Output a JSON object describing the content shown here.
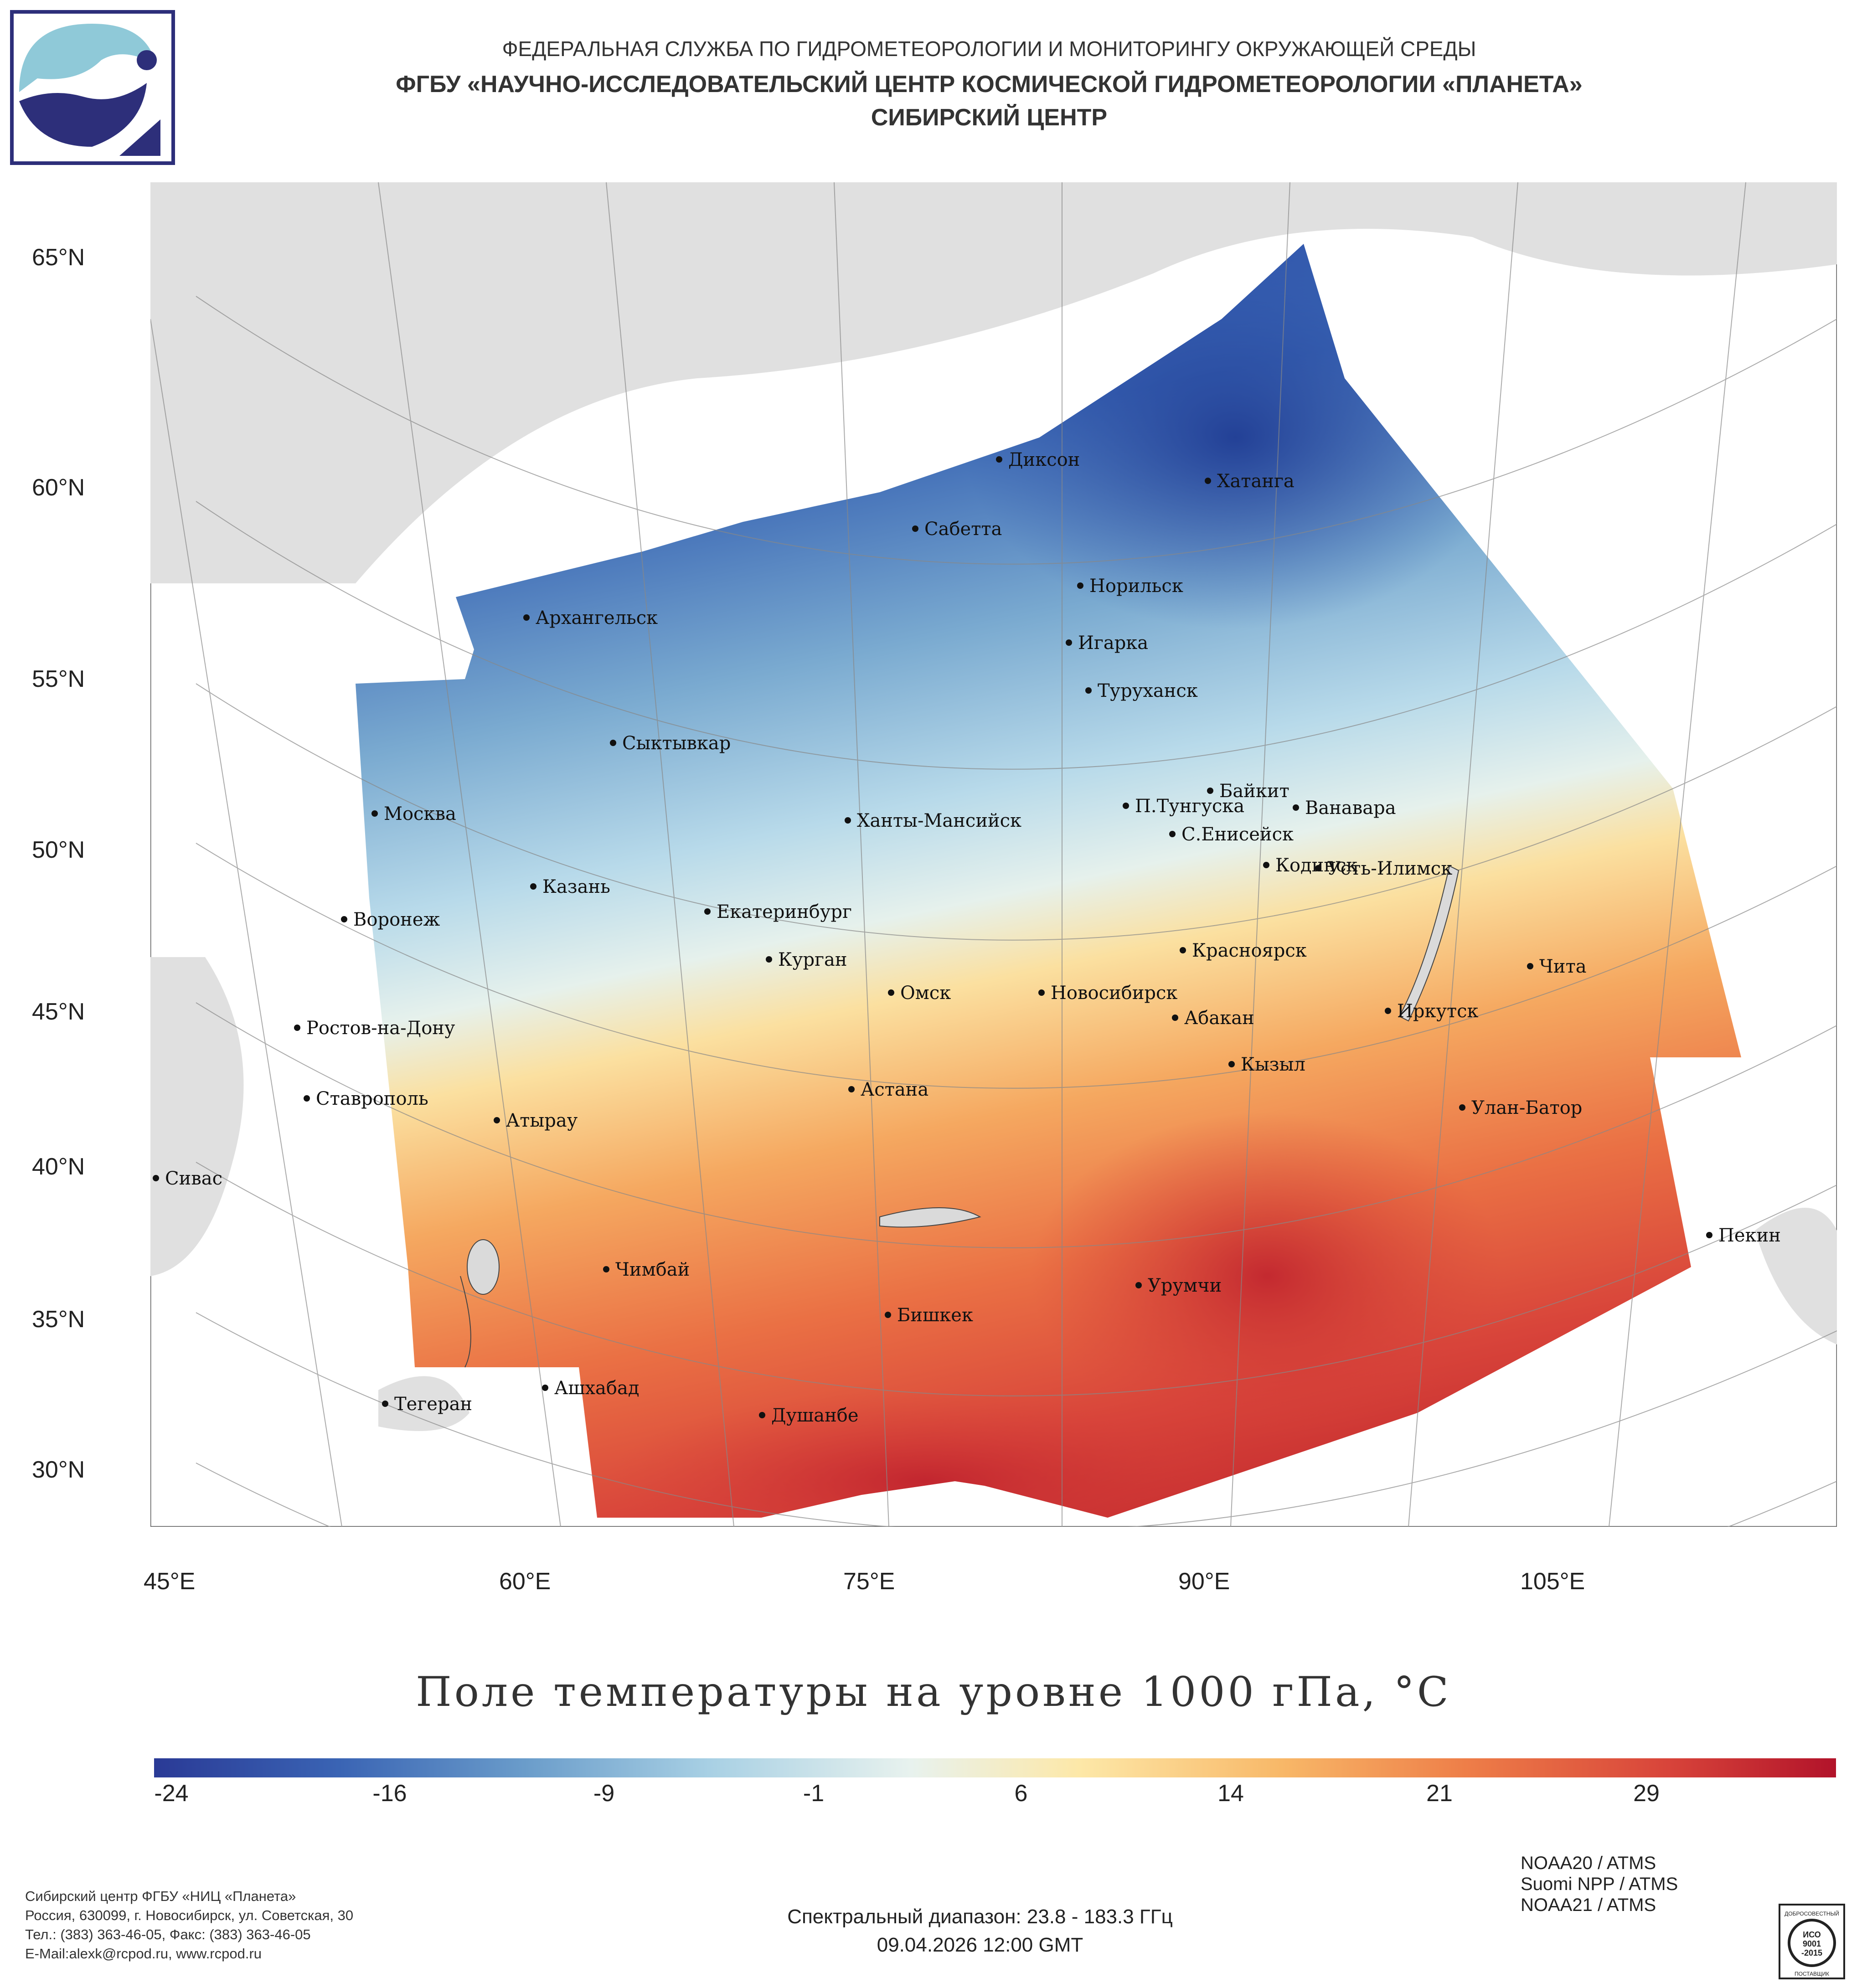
{
  "header": {
    "line1": "ФЕДЕРАЛЬНАЯ СЛУЖБА ПО ГИДРОМЕТЕОРОЛОГИИ И МОНИТОРИНГУ ОКРУЖАЮЩЕЙ СРЕДЫ",
    "line2": "ФГБУ «НАУЧНО-ИССЛЕДОВАТЕЛЬСКИЙ ЦЕНТР КОСМИЧЕСКОЙ ГИДРОМЕТЕОРОЛОГИИ «ПЛАНЕТА»",
    "line3": "СИБИРСКИЙ ЦЕНТР"
  },
  "map": {
    "lat_labels": [
      "65°N",
      "60°N",
      "55°N",
      "50°N",
      "45°N",
      "40°N",
      "35°N",
      "30°N"
    ],
    "lon_labels": [
      "45°E",
      "60°E",
      "75°E",
      "90°E",
      "105°E"
    ],
    "cities": [
      "Диксон",
      "Хатанга",
      "Сабетта",
      "Норильск",
      "Архангельск",
      "Игарка",
      "Туруханск",
      "Сыктывкар",
      "Байкит",
      "Москва",
      "П.Тунгуска",
      "Ванавара",
      "Ханты-Мансийск",
      "С.Енисейск",
      "Кодинск",
      "Усть-Илимск",
      "Казань",
      "Екатеринбург",
      "Воронеж",
      "Красноярск",
      "Курган",
      "Чита",
      "Омск",
      "Новосибирск",
      "Иркутск",
      "Абакан",
      "Ростов-на-Дону",
      "Кызыл",
      "Астана",
      "Ставрополь",
      "Улан-Батор",
      "Атырау",
      "Сивас",
      "Пекин",
      "Чимбай",
      "Урумчи",
      "Бишкек",
      "Ашхабад",
      "Тегеран",
      "Душанбе"
    ]
  },
  "title": "Поле температуры на уровне 1000 гПа, °C",
  "colorbar": {
    "ticks": [
      "-24",
      "-16",
      "-9",
      "-1",
      "6",
      "14",
      "21",
      "29"
    ],
    "colors": [
      "#2a3a96",
      "#3a64b4",
      "#6a9cca",
      "#a8d0e4",
      "#e8f2ee",
      "#fde8a8",
      "#f8b868",
      "#ee7e48",
      "#d8443a",
      "#b2132a"
    ]
  },
  "footer": {
    "org_lines": [
      "Сибирский центр ФГБУ «НИЦ «Планета»",
      "Россия, 630099, г. Новосибирск, ул. Советская, 30",
      "Тел.: (383) 363-46-05, Факс: (383) 363-46-05",
      "E-Mail:alexk@rcpod.ru, www.rcpod.ru"
    ],
    "spectral": "Спектральный диапазон: 23.8 - 183.3 ГГц",
    "datetime": "09.04.2026 12:00 GMT",
    "satellites": [
      "NOAA20 / ATMS",
      "Suomi NPP / ATMS",
      "NOAA21 / ATMS"
    ]
  },
  "iso_badge": [
    "ДОБРОСОВЕСТНЫЙ",
    "ИСО",
    "9001",
    "-2015",
    "ПОСТАВЩИК"
  ]
}
